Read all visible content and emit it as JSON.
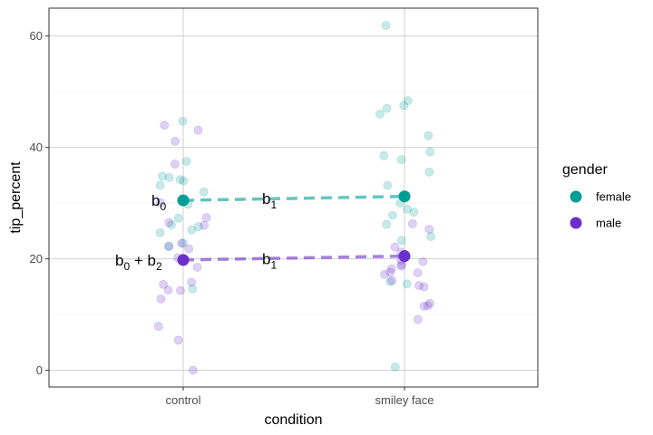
{
  "chart_data": {
    "type": "scatter",
    "xlabel": "condition",
    "ylabel": "tip_percent",
    "categories": [
      "control",
      "smiley face"
    ],
    "ylim": [
      -3,
      65
    ],
    "yticks": [
      0,
      20,
      40,
      60
    ],
    "grid": true,
    "legend": {
      "title": "gender",
      "position": "right",
      "entries": [
        {
          "label": "female",
          "color": "#009E96"
        },
        {
          "label": "male",
          "color": "#6B2FCB"
        }
      ]
    },
    "series": [
      {
        "name": "female",
        "color": "#009E96",
        "points": [
          {
            "x": "control",
            "y": 44.7
          },
          {
            "x": "control",
            "y": 37.5
          },
          {
            "x": "control",
            "y": 34.8
          },
          {
            "x": "control",
            "y": 34.6
          },
          {
            "x": "control",
            "y": 34.2
          },
          {
            "x": "control",
            "y": 34.0
          },
          {
            "x": "control",
            "y": 33.2
          },
          {
            "x": "control",
            "y": 32.0
          },
          {
            "x": "control",
            "y": 29.8
          },
          {
            "x": "control",
            "y": 27.3
          },
          {
            "x": "control",
            "y": 26.1
          },
          {
            "x": "control",
            "y": 25.8
          },
          {
            "x": "control",
            "y": 25.2
          },
          {
            "x": "control",
            "y": 24.7
          },
          {
            "x": "control",
            "y": 22.8
          },
          {
            "x": "control",
            "y": 22.3
          },
          {
            "x": "control",
            "y": 14.6
          },
          {
            "x": "smiley face",
            "y": 61.9
          },
          {
            "x": "smiley face",
            "y": 48.4
          },
          {
            "x": "smiley face",
            "y": 47.5
          },
          {
            "x": "smiley face",
            "y": 47.0
          },
          {
            "x": "smiley face",
            "y": 46.0
          },
          {
            "x": "smiley face",
            "y": 42.1
          },
          {
            "x": "smiley face",
            "y": 39.2
          },
          {
            "x": "smiley face",
            "y": 38.5
          },
          {
            "x": "smiley face",
            "y": 37.8
          },
          {
            "x": "smiley face",
            "y": 35.6
          },
          {
            "x": "smiley face",
            "y": 33.2
          },
          {
            "x": "smiley face",
            "y": 30.0
          },
          {
            "x": "smiley face",
            "y": 28.9
          },
          {
            "x": "smiley face",
            "y": 28.4
          },
          {
            "x": "smiley face",
            "y": 27.8
          },
          {
            "x": "smiley face",
            "y": 26.2
          },
          {
            "x": "smiley face",
            "y": 24.0
          },
          {
            "x": "smiley face",
            "y": 23.3
          },
          {
            "x": "smiley face",
            "y": 15.9
          },
          {
            "x": "smiley face",
            "y": 15.5
          },
          {
            "x": "smiley face",
            "y": 0.6
          }
        ],
        "mean": [
          {
            "x": "control",
            "y": 30.5
          },
          {
            "x": "smiley face",
            "y": 31.2
          }
        ]
      },
      {
        "name": "male",
        "color": "#6B2FCB",
        "points": [
          {
            "x": "control",
            "y": 44.0
          },
          {
            "x": "control",
            "y": 43.1
          },
          {
            "x": "control",
            "y": 41.1
          },
          {
            "x": "control",
            "y": 37.0
          },
          {
            "x": "control",
            "y": 30.1
          },
          {
            "x": "control",
            "y": 27.4
          },
          {
            "x": "control",
            "y": 26.5
          },
          {
            "x": "control",
            "y": 26.0
          },
          {
            "x": "control",
            "y": 22.8
          },
          {
            "x": "control",
            "y": 22.2
          },
          {
            "x": "control",
            "y": 21.8
          },
          {
            "x": "control",
            "y": 20.2
          },
          {
            "x": "control",
            "y": 18.5
          },
          {
            "x": "control",
            "y": 15.8
          },
          {
            "x": "control",
            "y": 15.4
          },
          {
            "x": "control",
            "y": 14.4
          },
          {
            "x": "control",
            "y": 14.3
          },
          {
            "x": "control",
            "y": 12.8
          },
          {
            "x": "control",
            "y": 7.9
          },
          {
            "x": "control",
            "y": 5.4
          },
          {
            "x": "control",
            "y": 0.0
          },
          {
            "x": "smiley face",
            "y": 26.3
          },
          {
            "x": "smiley face",
            "y": 25.3
          },
          {
            "x": "smiley face",
            "y": 22.1
          },
          {
            "x": "smiley face",
            "y": 21.2
          },
          {
            "x": "smiley face",
            "y": 20.1
          },
          {
            "x": "smiley face",
            "y": 19.8
          },
          {
            "x": "smiley face",
            "y": 19.5
          },
          {
            "x": "smiley face",
            "y": 19.0
          },
          {
            "x": "smiley face",
            "y": 18.7
          },
          {
            "x": "smiley face",
            "y": 18.2
          },
          {
            "x": "smiley face",
            "y": 17.6
          },
          {
            "x": "smiley face",
            "y": 17.5
          },
          {
            "x": "smiley face",
            "y": 17.2
          },
          {
            "x": "smiley face",
            "y": 16.1
          },
          {
            "x": "smiley face",
            "y": 15.2
          },
          {
            "x": "smiley face",
            "y": 15.0
          },
          {
            "x": "smiley face",
            "y": 12.0
          },
          {
            "x": "smiley face",
            "y": 11.6
          },
          {
            "x": "smiley face",
            "y": 11.5
          },
          {
            "x": "smiley face",
            "y": 9.1
          }
        ],
        "mean": [
          {
            "x": "control",
            "y": 19.8
          },
          {
            "x": "smiley face",
            "y": 20.5
          }
        ]
      }
    ],
    "annotations": [
      {
        "label": "b0",
        "base": "b",
        "sub": "0",
        "near": "female control mean"
      },
      {
        "label": "b1",
        "base": "b",
        "sub": "1",
        "near": "female mean difference"
      },
      {
        "label": "b0 + b2",
        "base": "b",
        "sub": "0",
        "op": "+",
        "base2": "b",
        "sub2": "2",
        "near": "male control mean"
      },
      {
        "label": "b1",
        "base": "b",
        "sub": "1",
        "near": "male mean difference"
      }
    ]
  }
}
